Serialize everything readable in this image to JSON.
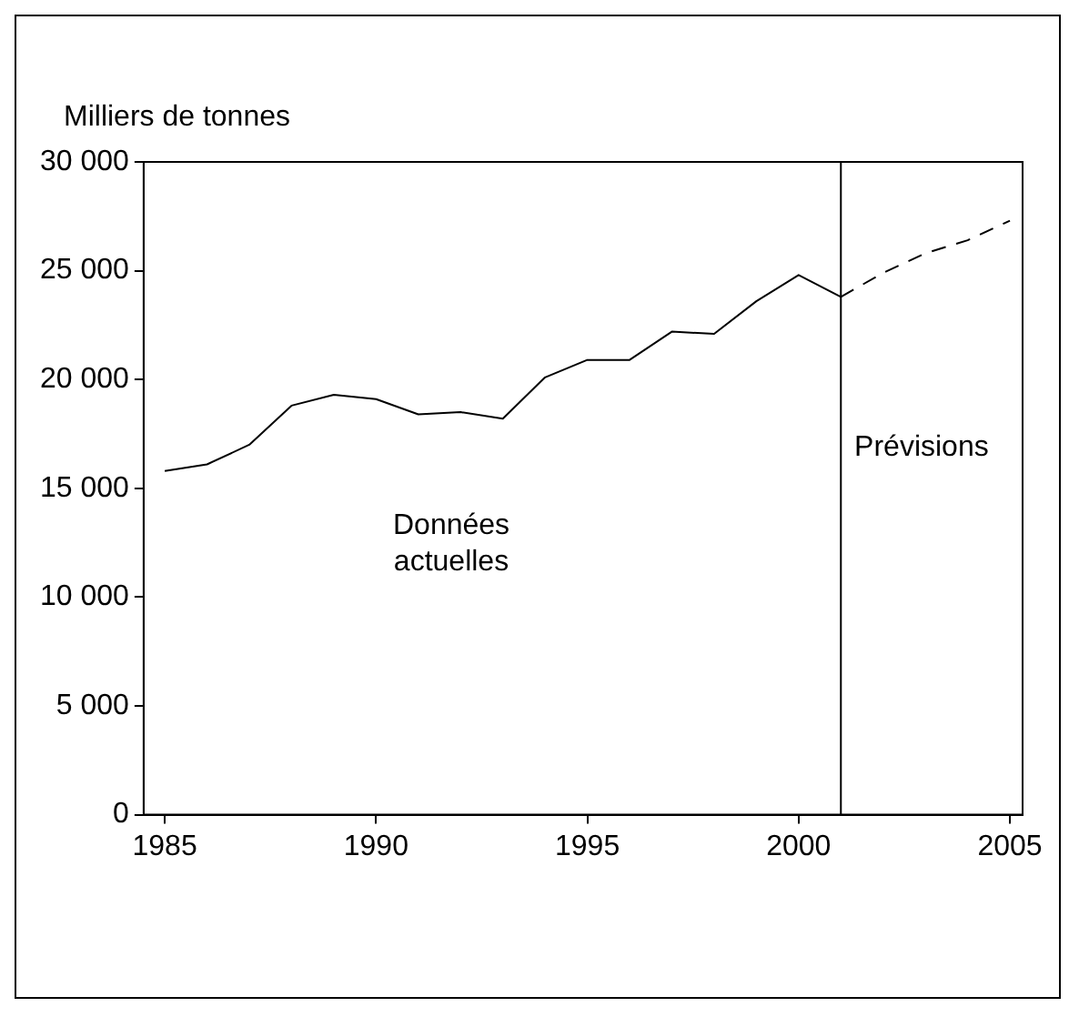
{
  "chart_data": {
    "type": "line",
    "ylabel": "Milliers de tonnes",
    "series": [
      {
        "color": "#000000",
        "line_style": "solid",
        "x": [
          1985,
          1986,
          1987,
          1988,
          1989,
          1990,
          1991,
          1992,
          1993,
          1994,
          1995,
          1996,
          1997,
          1998,
          1999,
          2000,
          2001
        ],
        "values": [
          15800,
          16100,
          17000,
          18800,
          19300,
          19100,
          18400,
          18500,
          18200,
          20100,
          20900,
          20900,
          22200,
          22100,
          23600,
          24800,
          23800
        ]
      },
      {
        "color": "#000000",
        "line_style": "dashed",
        "x": [
          2001,
          2002,
          2003,
          2004,
          2005
        ],
        "values": [
          23800,
          24900,
          25800,
          26400,
          27300
        ]
      }
    ],
    "xlim": [
      1984.5,
      2005.3
    ],
    "xticks": [
      1985,
      1990,
      1995,
      2000,
      2005
    ],
    "ylim": [
      0,
      30000
    ],
    "yticks": [
      0,
      {
        "value": 5000,
        "label": "5 000"
      },
      {
        "value": 10000,
        "label": "10 000"
      },
      {
        "value": 15000,
        "label": "15 000"
      },
      {
        "value": 20000,
        "label": "20 000"
      },
      {
        "value": 25000,
        "label": "25 000"
      },
      {
        "value": 30000,
        "label": "30 000"
      }
    ],
    "ref_lines": [
      {
        "axis": "x",
        "value": 2001,
        "color": "#000000"
      }
    ],
    "annotations": [
      "Données\nactuelles",
      "Prévisions"
    ],
    "grid": false,
    "legend": false,
    "marker": "none"
  }
}
